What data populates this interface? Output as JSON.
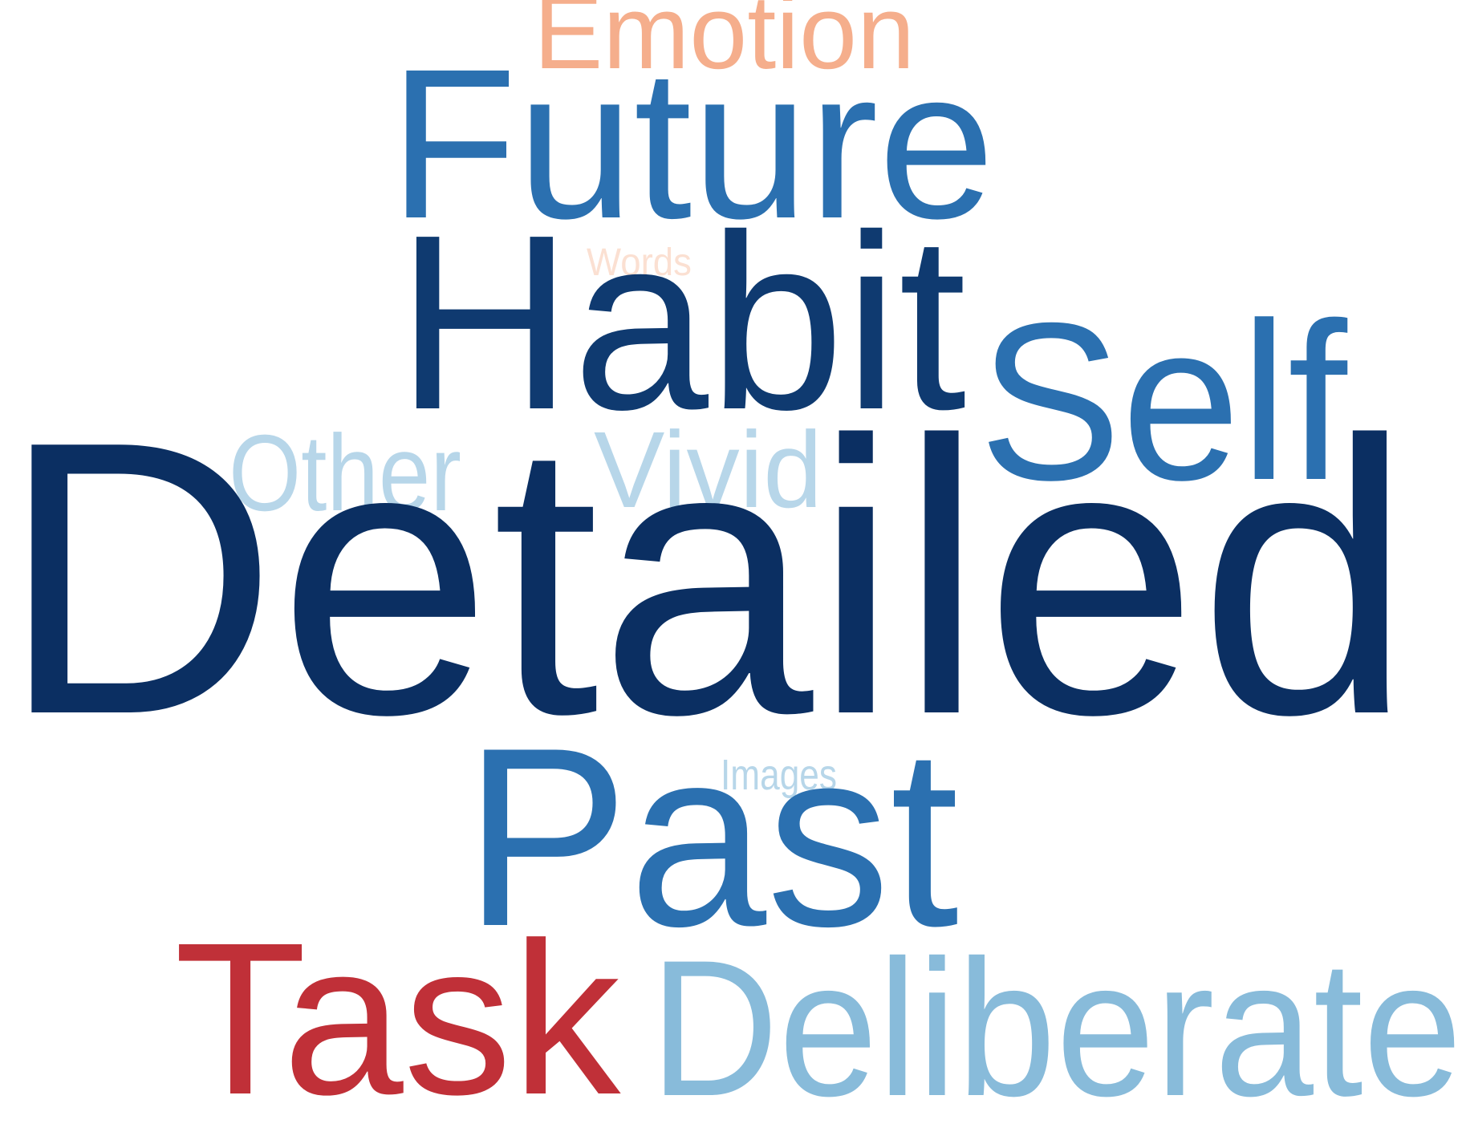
{
  "words": [
    {
      "key": "detailed",
      "text": "Detailed",
      "color": "#0b2f62"
    },
    {
      "key": "habit",
      "text": "Habit",
      "color": "#0f3a70"
    },
    {
      "key": "future",
      "text": "Future",
      "color": "#2b70b0"
    },
    {
      "key": "past",
      "text": "Past",
      "color": "#2b70b0"
    },
    {
      "key": "self",
      "text": "Self",
      "color": "#2b70b0"
    },
    {
      "key": "task",
      "text": "Task",
      "color": "#c03038"
    },
    {
      "key": "deliberate",
      "text": "Deliberate",
      "color": "#88bbda"
    },
    {
      "key": "emotion",
      "text": "Emotion",
      "color": "#f5ae8c"
    },
    {
      "key": "other",
      "text": "Other",
      "color": "#b7d6e9"
    },
    {
      "key": "vivid",
      "text": "Vivid",
      "color": "#b7d6e9"
    },
    {
      "key": "words",
      "text": "Words",
      "color": "#fbe0d2"
    },
    {
      "key": "images",
      "text": "Images",
      "color": "#b7d6e9"
    }
  ]
}
